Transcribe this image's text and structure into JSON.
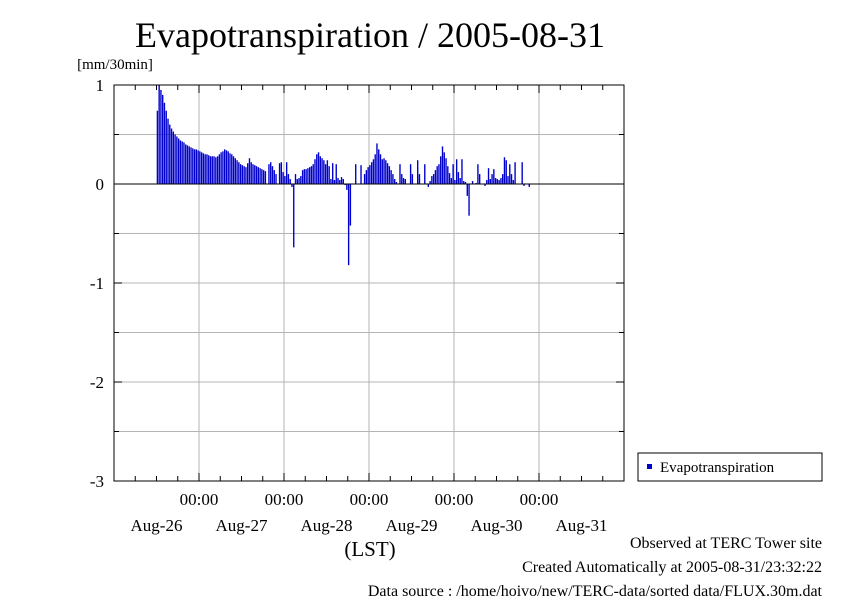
{
  "chart_data": {
    "type": "bar",
    "title": "Evapotranspiration / 2005-08-31",
    "ylabel": "[mm/30min]",
    "xlabel": "(LST)",
    "ylim": [
      -3,
      1
    ],
    "yticks": [
      "1",
      "0",
      "-1",
      "-2",
      "-3"
    ],
    "ytick_values": [
      1,
      0,
      -1,
      -2,
      -3
    ],
    "xlim_days": [
      0,
      6
    ],
    "time_labels": [
      "00:00",
      "00:00",
      "00:00",
      "00:00",
      "00:00"
    ],
    "time_positions_days": [
      1,
      2,
      3,
      4,
      5
    ],
    "date_labels": [
      "Aug-26",
      "Aug-27",
      "Aug-28",
      "Aug-29",
      "Aug-30",
      "Aug-31"
    ],
    "date_positions_days": [
      0.5,
      1.5,
      2.5,
      3.5,
      4.5,
      5.5
    ],
    "grid": true,
    "legend_position": "right",
    "colors": {
      "bar": "#0000cc",
      "grid": "#b4b4b4",
      "axis": "#000000"
    },
    "series": [
      {
        "name": "Evapotranspiration",
        "start_time": "Aug-26 12:30",
        "interval_minutes": 30,
        "values": [
          0.74,
          1.0,
          0.95,
          0.9,
          0.82,
          0.74,
          0.66,
          0.6,
          0.56,
          0.53,
          0.5,
          0.48,
          0.46,
          0.44,
          0.43,
          0.42,
          0.4,
          0.39,
          0.38,
          0.37,
          0.36,
          0.35,
          0.35,
          0.34,
          0.33,
          0.32,
          0.31,
          0.3,
          0.3,
          0.29,
          0.28,
          0.28,
          0.28,
          0.27,
          0.28,
          0.3,
          0.32,
          0.33,
          0.35,
          0.34,
          0.33,
          0.31,
          0.3,
          0.28,
          0.26,
          0.24,
          0.22,
          0.2,
          0.19,
          0.18,
          0.17,
          0.21,
          0.26,
          0.22,
          0.2,
          0.19,
          0.18,
          0.17,
          0.16,
          0.15,
          0.14,
          0.13,
          null,
          0.2,
          0.22,
          0.18,
          0.14,
          0.1,
          null,
          0.21,
          0.22,
          0.12,
          0.08,
          0.22,
          0.1,
          0.05,
          -0.03,
          -0.64,
          0.1,
          0.05,
          0.06,
          0.08,
          0.14,
          0.15,
          0.15,
          0.16,
          0.17,
          0.18,
          0.2,
          0.25,
          0.3,
          0.32,
          0.28,
          0.26,
          0.24,
          0.2,
          0.24,
          0.18,
          0.05,
          0.21,
          0.04,
          0.2,
          0.06,
          0.04,
          0.07,
          0.05,
          -0.01,
          -0.06,
          -0.82,
          -0.42,
          null,
          null,
          0.2,
          null,
          null,
          0.19,
          null,
          0.1,
          0.14,
          0.17,
          0.19,
          0.22,
          0.25,
          0.3,
          0.41,
          0.35,
          0.3,
          0.25,
          0.26,
          0.24,
          0.21,
          0.18,
          0.14,
          0.1,
          0.05,
          0.02,
          null,
          0.2,
          0.1,
          0.06,
          0.05,
          null,
          null,
          0.2,
          0.1,
          null,
          null,
          0.24,
          0.1,
          null,
          null,
          0.2,
          null,
          -0.03,
          0.03,
          0.08,
          0.1,
          0.14,
          0.18,
          0.2,
          0.28,
          0.38,
          0.32,
          0.26,
          0.18,
          0.11,
          0.06,
          0.2,
          0.04,
          0.25,
          0.12,
          0.06,
          0.25,
          0.03,
          0.02,
          -0.12,
          -0.32,
          null,
          0.03,
          null,
          0.01,
          0.2,
          0.1,
          null,
          null,
          -0.02,
          0.04,
          0.16,
          0.05,
          0.1,
          0.15,
          0.06,
          0.05,
          0.04,
          0.06,
          0.1,
          0.27,
          0.24,
          0.08,
          0.2,
          0.1,
          0.04,
          0.22,
          null,
          null,
          null,
          0.22,
          -0.02,
          null,
          null,
          -0.03
        ]
      }
    ]
  },
  "legend": {
    "items": [
      "Evapotranspiration"
    ]
  },
  "footer": {
    "line1": "Observed at TERC Tower site",
    "line2": "Created Automatically at 2005-08-31/23:32:22",
    "line3": "Data source : /home/hoivo/new/TERC-data/sorted data/FLUX.30m.dat"
  }
}
